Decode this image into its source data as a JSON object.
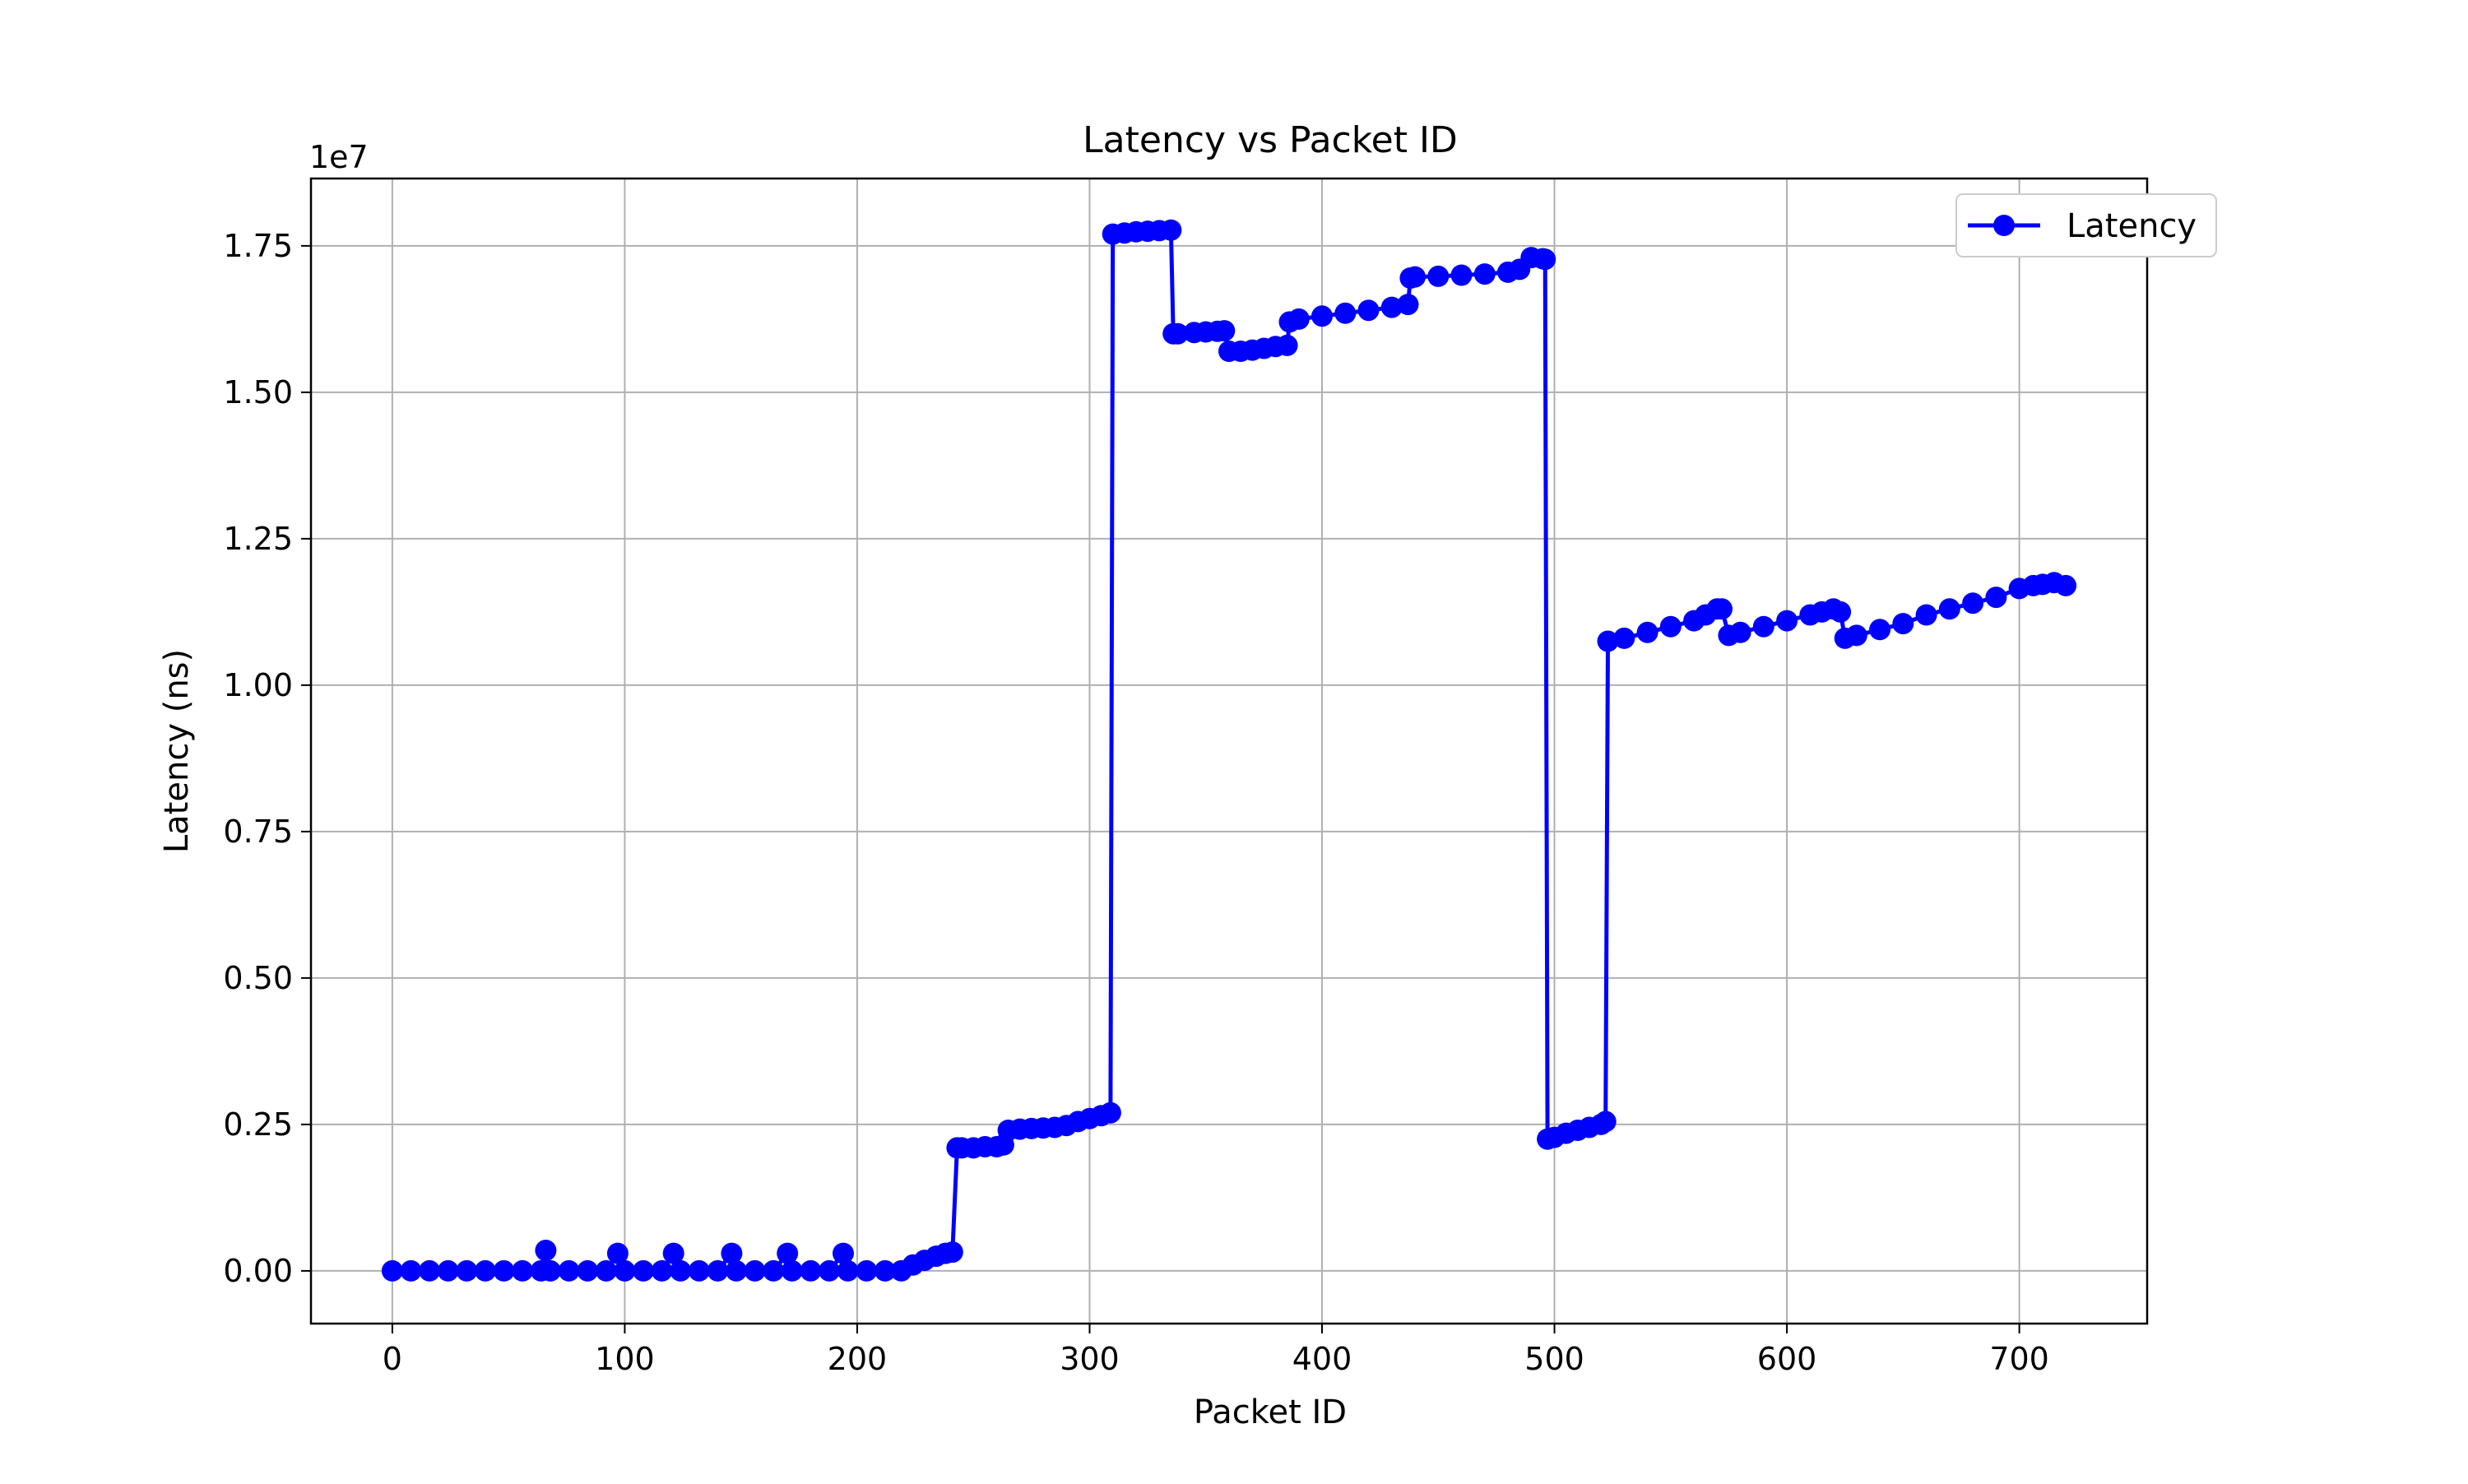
{
  "chart_data": {
    "type": "line",
    "title": "Latency vs Packet ID",
    "xlabel": "Packet ID",
    "ylabel": "Latency (ns)",
    "y_offset_label": "1e7",
    "xlim": [
      -35,
      755
    ],
    "ylim": [
      -0.09,
      1.865
    ],
    "y_scale_note": "values in units of 1e7 ns",
    "x_ticks": [
      0,
      100,
      200,
      300,
      400,
      500,
      600,
      700
    ],
    "x_tick_labels": [
      "0",
      "100",
      "200",
      "300",
      "400",
      "500",
      "600",
      "700"
    ],
    "y_ticks": [
      0,
      0.25,
      0.5,
      0.75,
      1.0,
      1.25,
      1.5,
      1.75
    ],
    "y_tick_labels": [
      "0.00",
      "0.25",
      "0.50",
      "0.75",
      "1.00",
      "1.25",
      "1.50",
      "1.75"
    ],
    "grid": true,
    "legend_position": "top-right",
    "series": [
      {
        "name": "Latency",
        "color": "#0000ff",
        "marker": "circle",
        "x": [
          0,
          8,
          16,
          24,
          32,
          40,
          48,
          56,
          64,
          66,
          68,
          76,
          84,
          92,
          97,
          100,
          108,
          116,
          121,
          124,
          132,
          140,
          146,
          148,
          156,
          164,
          170,
          172,
          180,
          188,
          194,
          196,
          204,
          212,
          219,
          224,
          229,
          234,
          238,
          241,
          243,
          245,
          250,
          255,
          260,
          263,
          265,
          270,
          275,
          280,
          285,
          290,
          295,
          300,
          305,
          309,
          310,
          315,
          320,
          325,
          330,
          335,
          336,
          338,
          345,
          350,
          355,
          358,
          360,
          365,
          370,
          375,
          380,
          385,
          386,
          390,
          400,
          410,
          420,
          430,
          437,
          438,
          440,
          450,
          460,
          470,
          480,
          485,
          490,
          495,
          496,
          497,
          500,
          505,
          510,
          515,
          520,
          522,
          523,
          530,
          540,
          550,
          560,
          565,
          570,
          572,
          575,
          580,
          590,
          600,
          610,
          615,
          620,
          623,
          625,
          630,
          640,
          650,
          660,
          670,
          680,
          690,
          700,
          706,
          710,
          715,
          720
        ],
        "y": [
          0,
          0,
          0,
          0,
          0,
          0,
          0,
          0,
          0,
          0.035,
          0,
          0,
          0,
          0,
          0.03,
          0,
          0,
          0,
          0.03,
          0,
          0,
          0,
          0.03,
          0,
          0,
          0,
          0.03,
          0,
          0,
          0,
          0.03,
          0,
          0,
          0,
          0,
          0.01,
          0.018,
          0.025,
          0.03,
          0.032,
          0.21,
          0.21,
          0.21,
          0.212,
          0.212,
          0.215,
          0.24,
          0.242,
          0.243,
          0.244,
          0.245,
          0.248,
          0.255,
          0.26,
          0.265,
          0.27,
          1.77,
          1.772,
          1.774,
          1.775,
          1.776,
          1.777,
          1.6,
          1.6,
          1.602,
          1.603,
          1.604,
          1.605,
          1.57,
          1.57,
          1.572,
          1.575,
          1.578,
          1.58,
          1.62,
          1.625,
          1.63,
          1.635,
          1.64,
          1.645,
          1.65,
          1.695,
          1.697,
          1.698,
          1.7,
          1.702,
          1.705,
          1.71,
          1.73,
          1.728,
          1.727,
          0.225,
          0.228,
          0.235,
          0.24,
          0.245,
          0.25,
          0.255,
          1.075,
          1.08,
          1.09,
          1.1,
          1.11,
          1.12,
          1.13,
          1.13,
          1.085,
          1.09,
          1.1,
          1.11,
          1.12,
          1.125,
          1.13,
          1.125,
          1.08,
          1.085,
          1.095,
          1.105,
          1.12,
          1.13,
          1.14,
          1.15,
          1.165,
          1.17,
          1.172,
          1.175,
          1.17
        ]
      }
    ]
  }
}
